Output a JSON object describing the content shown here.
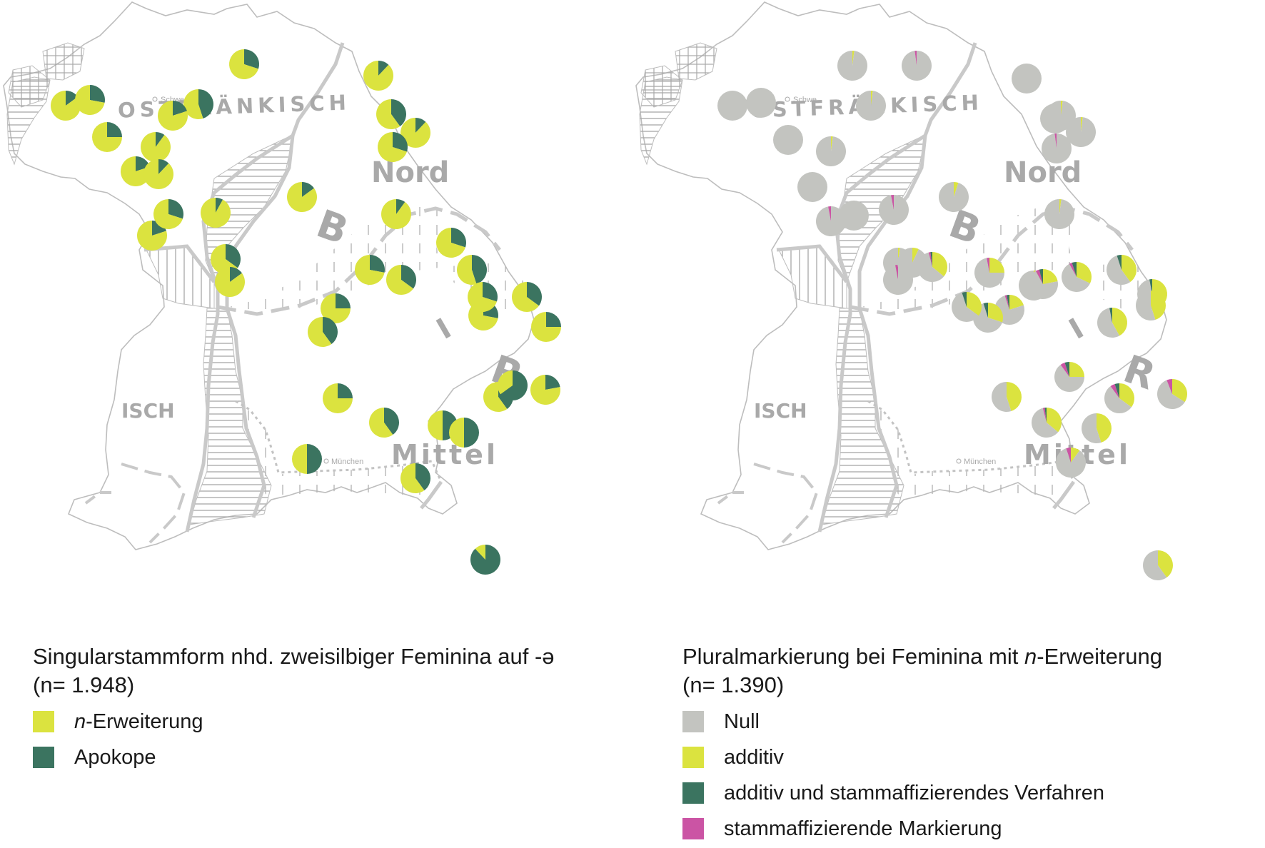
{
  "colors": {
    "yellow": "#dbe33f",
    "green": "#3b7460",
    "grey": "#c3c4c0",
    "magenta": "#cb54a4",
    "map_line": "#c8c8c8",
    "boundary": "#9a9a9a",
    "region_label": "#a9a9a9"
  },
  "map_labels": {
    "ostfraenkisch": "OSTFRÄNKISCH",
    "nord": "Nord",
    "b": "B",
    "i": "I",
    "r": "R",
    "mittel": "Mittel",
    "isch": "ISCH",
    "schweinfurt": "Schwe",
    "muenchen": "München"
  },
  "left_panel": {
    "title_line1_main": "Singularstammform nhd. zweisilbiger Feminina auf -",
    "title_line1_symbol": "ə",
    "title_line2": "(n= 1.948)",
    "legend": [
      {
        "italic": "n",
        "text": "-Erweiterung",
        "color": "#dbe33f"
      },
      {
        "italic": "",
        "text": "Apokope",
        "color": "#3b7460"
      }
    ]
  },
  "right_panel": {
    "title_line1_before": "Pluralmarkierung bei Feminina mit ",
    "title_line1_italic": "n",
    "title_line1_after": "-Erweiterung",
    "title_line2": "(n= 1.390)",
    "legend": [
      {
        "text": "Null",
        "color": "#c3c4c0"
      },
      {
        "text": "additiv",
        "color": "#dbe33f"
      },
      {
        "text": "additiv und stammaffizierendes Verfahren",
        "color": "#3b7460"
      },
      {
        "text": "stammaffizierende Markierung",
        "color": "#cb54a4"
      }
    ]
  },
  "left_pies": [
    {
      "site": 1,
      "n_erweiterung": 0.85,
      "apokope": 0.15
    },
    {
      "site": 2,
      "n_erweiterung": 0.72,
      "apokope": 0.28
    },
    {
      "site": 3,
      "n_erweiterung": 0.75,
      "apokope": 0.25
    },
    {
      "site": 4,
      "n_erweiterung": 0.9,
      "apokope": 0.1
    },
    {
      "site": 5,
      "n_erweiterung": 0.8,
      "apokope": 0.2
    },
    {
      "site": 6,
      "n_erweiterung": 0.88,
      "apokope": 0.12
    },
    {
      "site": 7,
      "n_erweiterung": 0.55,
      "apokope": 0.45
    },
    {
      "site": 8,
      "n_erweiterung": 0.7,
      "apokope": 0.3
    },
    {
      "site": 9,
      "n_erweiterung": 0.88,
      "apokope": 0.12
    },
    {
      "site": 10,
      "n_erweiterung": 0.6,
      "apokope": 0.4
    },
    {
      "site": 11,
      "n_erweiterung": 0.88,
      "apokope": 0.12
    },
    {
      "site": 12,
      "n_erweiterung": 0.7,
      "apokope": 0.3
    },
    {
      "site": 13,
      "n_erweiterung": 0.92,
      "apokope": 0.08
    },
    {
      "site": 14,
      "n_erweiterung": 0.85,
      "apokope": 0.15
    },
    {
      "site": 15,
      "n_erweiterung": 0.9,
      "apokope": 0.1
    },
    {
      "site": 16,
      "n_erweiterung": 0.8,
      "apokope": 0.2
    },
    {
      "site": 17,
      "n_erweiterung": 0.7,
      "apokope": 0.3
    },
    {
      "site": 18,
      "n_erweiterung": 0.65,
      "apokope": 0.35
    },
    {
      "site": 19,
      "n_erweiterung": 0.85,
      "apokope": 0.15
    },
    {
      "site": 20,
      "n_erweiterung": 0.72,
      "apokope": 0.28
    },
    {
      "site": 21,
      "n_erweiterung": 0.65,
      "apokope": 0.35
    },
    {
      "site": 22,
      "n_erweiterung": 0.7,
      "apokope": 0.3
    },
    {
      "site": 23,
      "n_erweiterung": 0.55,
      "apokope": 0.45
    },
    {
      "site": 24,
      "n_erweiterung": 0.75,
      "apokope": 0.25
    },
    {
      "site": 25,
      "n_erweiterung": 0.6,
      "apokope": 0.4
    },
    {
      "site": 26,
      "n_erweiterung": 0.72,
      "apokope": 0.28
    },
    {
      "site": 27,
      "n_erweiterung": 0.7,
      "apokope": 0.3
    },
    {
      "site": 28,
      "n_erweiterung": 0.75,
      "apokope": 0.25
    },
    {
      "site": 29,
      "n_erweiterung": 0.75,
      "apokope": 0.25
    },
    {
      "site": 30,
      "n_erweiterung": 0.6,
      "apokope": 0.4
    },
    {
      "site": 31,
      "n_erweiterung": 0.6,
      "apokope": 0.4
    },
    {
      "site": 32,
      "n_erweiterung": 0.78,
      "apokope": 0.22
    },
    {
      "site": 33,
      "n_erweiterung": 0.5,
      "apokope": 0.5
    },
    {
      "site": 34,
      "n_erweiterung": 0.5,
      "apokope": 0.5
    },
    {
      "site": 35,
      "n_erweiterung": 0.5,
      "apokope": 0.5
    },
    {
      "site": 36,
      "n_erweiterung": 0.6,
      "apokope": 0.4
    },
    {
      "site": 37,
      "n_erweiterung": 0.65,
      "apokope": 0.35
    },
    {
      "site": 38,
      "n_erweiterung": 0.8,
      "apokope": 0.2
    },
    {
      "site": 39,
      "n_erweiterung": 0.35,
      "apokope": 0.65
    },
    {
      "site": 40,
      "n_erweiterung": 0.12,
      "apokope": 0.88
    }
  ],
  "right_pies": [
    {
      "site": 1,
      "null": 1.0,
      "additiv": 0.0,
      "additiv_stammaff": 0.0,
      "stammaff": 0.0
    },
    {
      "site": 2,
      "null": 1.0,
      "additiv": 0.0,
      "additiv_stammaff": 0.0,
      "stammaff": 0.0
    },
    {
      "site": 3,
      "null": 1.0,
      "additiv": 0.0,
      "additiv_stammaff": 0.0,
      "stammaff": 0.0
    },
    {
      "site": 4,
      "null": 0.98,
      "additiv": 0.02,
      "additiv_stammaff": 0.0,
      "stammaff": 0.0
    },
    {
      "site": 5,
      "null": 0.98,
      "additiv": 0.0,
      "additiv_stammaff": 0.0,
      "stammaff": 0.02
    },
    {
      "site": 6,
      "null": 1.0,
      "additiv": 0.0,
      "additiv_stammaff": 0.0,
      "stammaff": 0.0
    },
    {
      "site": 7,
      "null": 0.98,
      "additiv": 0.02,
      "additiv_stammaff": 0.0,
      "stammaff": 0.0
    },
    {
      "site": 8,
      "null": 0.98,
      "additiv": 0.02,
      "additiv_stammaff": 0.0,
      "stammaff": 0.0
    },
    {
      "site": 9,
      "null": 1.0,
      "additiv": 0.0,
      "additiv_stammaff": 0.0,
      "stammaff": 0.0
    },
    {
      "site": 10,
      "null": 0.98,
      "additiv": 0.0,
      "additiv_stammaff": 0.0,
      "stammaff": 0.02
    },
    {
      "site": 11,
      "null": 1.0,
      "additiv": 0.0,
      "additiv_stammaff": 0.0,
      "stammaff": 0.0
    },
    {
      "site": 12,
      "null": 0.98,
      "additiv": 0.02,
      "additiv_stammaff": 0.0,
      "stammaff": 0.0
    },
    {
      "site": 13,
      "null": 0.97,
      "additiv": 0.0,
      "additiv_stammaff": 0.0,
      "stammaff": 0.03
    },
    {
      "site": 14,
      "null": 0.95,
      "additiv": 0.05,
      "additiv_stammaff": 0.0,
      "stammaff": 0.0
    },
    {
      "site": 15,
      "null": 0.98,
      "additiv": 0.02,
      "additiv_stammaff": 0.0,
      "stammaff": 0.0
    },
    {
      "site": 16,
      "null": 0.97,
      "additiv": 0.0,
      "additiv_stammaff": 0.0,
      "stammaff": 0.03
    },
    {
      "site": 17,
      "null": 1.0,
      "additiv": 0.0,
      "additiv_stammaff": 0.0,
      "stammaff": 0.0
    },
    {
      "site": 18,
      "null": 0.97,
      "additiv": 0.0,
      "additiv_stammaff": 0.0,
      "stammaff": 0.03
    },
    {
      "site": 19,
      "null": 0.93,
      "additiv": 0.07,
      "additiv_stammaff": 0.0,
      "stammaff": 0.0
    },
    {
      "site": 20,
      "null": 0.98,
      "additiv": 0.02,
      "additiv_stammaff": 0.0,
      "stammaff": 0.0
    },
    {
      "site": 21,
      "null": 0.98,
      "additiv": 0.02,
      "additiv_stammaff": 0.0,
      "stammaff": 0.0
    },
    {
      "site": 22,
      "null": 0.72,
      "additiv": 0.25,
      "additiv_stammaff": 0.0,
      "stammaff": 0.03
    },
    {
      "site": 23,
      "null": 0.75,
      "additiv": 0.2,
      "additiv_stammaff": 0.03,
      "stammaff": 0.02
    },
    {
      "site": 24,
      "null": 0.7,
      "additiv": 0.3,
      "additiv_stammaff": 0.0,
      "stammaff": 0.0
    },
    {
      "site": 25,
      "null": 0.6,
      "additiv": 0.36,
      "additiv_stammaff": 0.02,
      "stammaff": 0.02
    },
    {
      "site": 26,
      "null": 0.7,
      "additiv": 0.22,
      "additiv_stammaff": 0.04,
      "stammaff": 0.04
    },
    {
      "site": 27,
      "null": 0.6,
      "additiv": 0.32,
      "additiv_stammaff": 0.05,
      "stammaff": 0.03
    },
    {
      "site": 28,
      "null": 0.65,
      "additiv": 0.3,
      "additiv_stammaff": 0.05,
      "stammaff": 0.0
    },
    {
      "site": 29,
      "null": 0.55,
      "additiv": 0.42,
      "additiv_stammaff": 0.03,
      "stammaff": 0.0
    },
    {
      "site": 30,
      "null": 0.5,
      "additiv": 0.47,
      "additiv_stammaff": 0.03,
      "stammaff": 0.0
    },
    {
      "site": 31,
      "null": 0.55,
      "additiv": 0.4,
      "additiv_stammaff": 0.05,
      "stammaff": 0.0
    },
    {
      "site": 32,
      "null": 0.6,
      "additiv": 0.35,
      "additiv_stammaff": 0.05,
      "stammaff": 0.0
    },
    {
      "site": 33,
      "null": 0.55,
      "additiv": 0.45,
      "additiv_stammaff": 0.0,
      "stammaff": 0.0
    },
    {
      "site": 34,
      "null": 0.6,
      "additiv": 0.36,
      "additiv_stammaff": 0.02,
      "stammaff": 0.02
    },
    {
      "site": 35,
      "null": 0.55,
      "additiv": 0.35,
      "additiv_stammaff": 0.05,
      "stammaff": 0.05
    },
    {
      "site": 36,
      "null": 0.55,
      "additiv": 0.45,
      "additiv_stammaff": 0.0,
      "stammaff": 0.0
    },
    {
      "site": 37,
      "null": 0.6,
      "additiv": 0.34,
      "additiv_stammaff": 0.0,
      "stammaff": 0.06
    },
    {
      "site": 38,
      "null": 0.65,
      "additiv": 0.25,
      "additiv_stammaff": 0.05,
      "stammaff": 0.05
    },
    {
      "site": 39,
      "null": 0.85,
      "additiv": 0.1,
      "additiv_stammaff": 0.0,
      "stammaff": 0.05
    },
    {
      "site": 40,
      "null": 0.6,
      "additiv": 0.4,
      "additiv_stammaff": 0.0,
      "stammaff": 0.0
    },
    {
      "site": 41,
      "null": 0.55,
      "additiv": 0.45,
      "additiv_stammaff": 0.0,
      "stammaff": 0.0
    }
  ]
}
